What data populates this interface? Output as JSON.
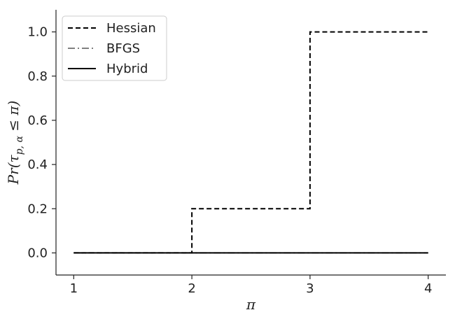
{
  "chart_data": {
    "type": "line",
    "step": true,
    "title": "",
    "xlabel": "π",
    "ylabel": "Pr(τ_{p,α} ≤ π)",
    "ylabel_parts": {
      "base": "Pr(τ",
      "sub": "p, α",
      "tail": " ≤ π)"
    },
    "xlim": [
      0.85,
      4.15
    ],
    "ylim": [
      -0.1,
      1.1
    ],
    "xticks": [
      1,
      2,
      3,
      4
    ],
    "xtick_labels": [
      "1",
      "2",
      "3",
      "4"
    ],
    "yticks": [
      0.0,
      0.2,
      0.4,
      0.6,
      0.8,
      1.0
    ],
    "ytick_labels": [
      "0.0",
      "0.2",
      "0.4",
      "0.6",
      "0.8",
      "1.0"
    ],
    "grid": false,
    "legend_position": "top-left",
    "series": [
      {
        "name": "Hessian",
        "style": "dashed",
        "color": "#000000",
        "x": [
          1,
          2,
          2,
          3,
          3,
          4
        ],
        "y": [
          0.0,
          0.0,
          0.2,
          0.2,
          1.0,
          1.0
        ]
      },
      {
        "name": "BFGS",
        "style": "dashdot",
        "color": "#808080",
        "x": [
          1,
          4
        ],
        "y": [
          0.0,
          0.0
        ]
      },
      {
        "name": "Hybrid",
        "style": "solid",
        "color": "#000000",
        "x": [
          1,
          4
        ],
        "y": [
          0.0,
          0.0
        ]
      }
    ]
  }
}
